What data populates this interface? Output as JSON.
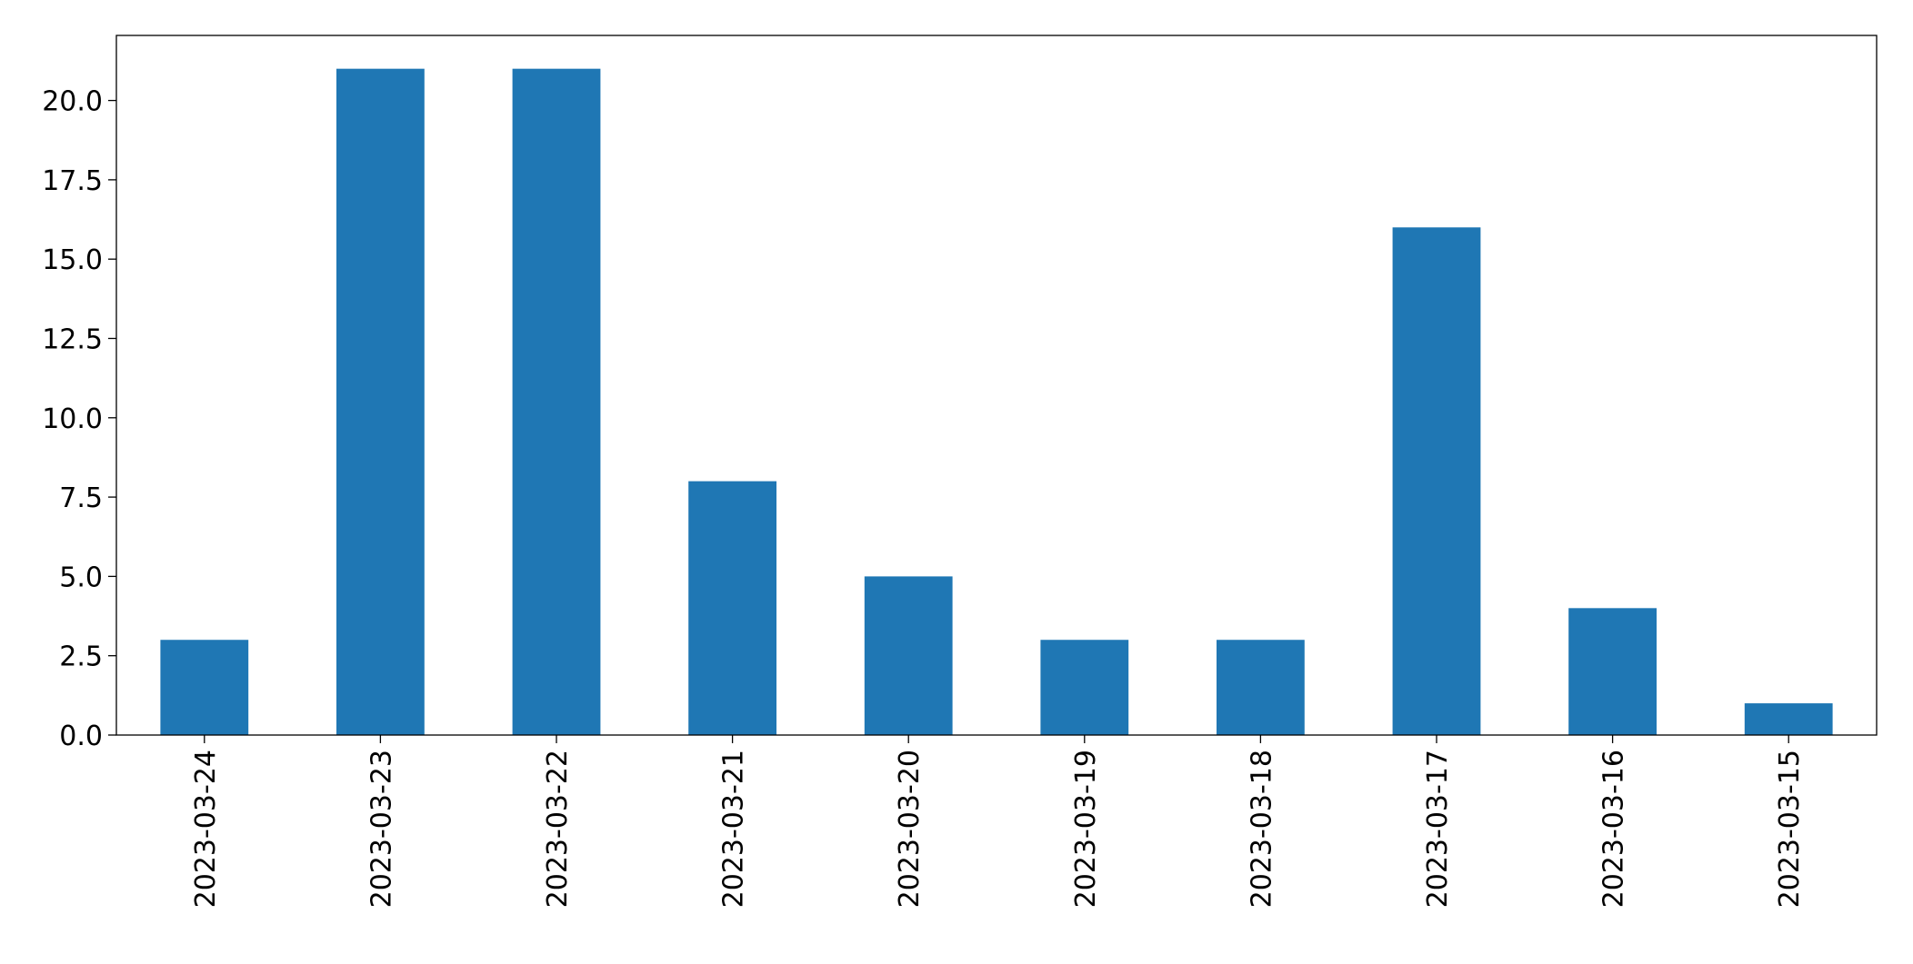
{
  "chart_data": {
    "type": "bar",
    "categories": [
      "2023-03-24",
      "2023-03-23",
      "2023-03-22",
      "2023-03-21",
      "2023-03-20",
      "2023-03-19",
      "2023-03-18",
      "2023-03-17",
      "2023-03-16",
      "2023-03-15"
    ],
    "values": [
      3,
      21,
      21,
      8,
      5,
      3,
      3,
      16,
      4,
      1
    ],
    "color": "#1f77b4",
    "ylim": [
      0,
      22.05
    ],
    "yticks": [
      {
        "value": 0,
        "label": "0.0"
      },
      2.5,
      {
        "value": 5,
        "label": "5.0"
      },
      7.5,
      {
        "value": 10,
        "label": "10.0"
      },
      12.5,
      {
        "value": 15,
        "label": "15.0"
      },
      17.5,
      {
        "value": 20,
        "label": "20.0"
      }
    ],
    "grid": false
  }
}
